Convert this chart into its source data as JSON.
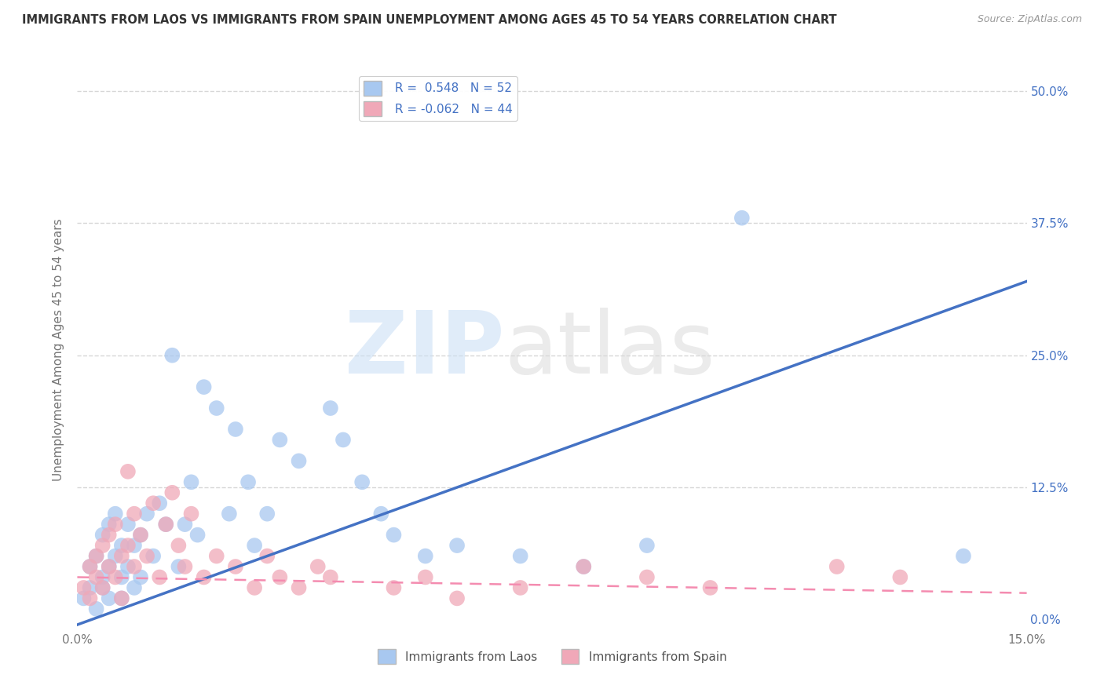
{
  "title": "IMMIGRANTS FROM LAOS VS IMMIGRANTS FROM SPAIN UNEMPLOYMENT AMONG AGES 45 TO 54 YEARS CORRELATION CHART",
  "source": "Source: ZipAtlas.com",
  "ylabel": "Unemployment Among Ages 45 to 54 years",
  "xlim": [
    0.0,
    0.15
  ],
  "ylim": [
    -0.01,
    0.52
  ],
  "ytick_positions": [
    0.0,
    0.125,
    0.25,
    0.375,
    0.5
  ],
  "ytick_labels_right": [
    "0.0%",
    "12.5%",
    "25.0%",
    "37.5%",
    "50.0%"
  ],
  "laos_color": "#a8c8f0",
  "spain_color": "#f0a8b8",
  "laos_line_color": "#4472c4",
  "spain_line_color": "#f48cb0",
  "laos_R": 0.548,
  "laos_N": 52,
  "spain_R": -0.062,
  "spain_N": 44,
  "background_color": "#ffffff",
  "grid_color": "#cccccc",
  "laos_x": [
    0.001,
    0.002,
    0.002,
    0.003,
    0.003,
    0.004,
    0.004,
    0.004,
    0.005,
    0.005,
    0.005,
    0.006,
    0.006,
    0.007,
    0.007,
    0.007,
    0.008,
    0.008,
    0.009,
    0.009,
    0.01,
    0.01,
    0.011,
    0.012,
    0.013,
    0.014,
    0.015,
    0.016,
    0.017,
    0.018,
    0.019,
    0.02,
    0.022,
    0.024,
    0.025,
    0.027,
    0.028,
    0.03,
    0.032,
    0.035,
    0.04,
    0.042,
    0.045,
    0.048,
    0.05,
    0.055,
    0.06,
    0.07,
    0.08,
    0.09,
    0.105,
    0.14
  ],
  "laos_y": [
    0.02,
    0.03,
    0.05,
    0.01,
    0.06,
    0.04,
    0.08,
    0.03,
    0.05,
    0.09,
    0.02,
    0.06,
    0.1,
    0.04,
    0.07,
    0.02,
    0.05,
    0.09,
    0.03,
    0.07,
    0.04,
    0.08,
    0.1,
    0.06,
    0.11,
    0.09,
    0.25,
    0.05,
    0.09,
    0.13,
    0.08,
    0.22,
    0.2,
    0.1,
    0.18,
    0.13,
    0.07,
    0.1,
    0.17,
    0.15,
    0.2,
    0.17,
    0.13,
    0.1,
    0.08,
    0.06,
    0.07,
    0.06,
    0.05,
    0.07,
    0.38,
    0.06
  ],
  "spain_x": [
    0.001,
    0.002,
    0.002,
    0.003,
    0.003,
    0.004,
    0.004,
    0.005,
    0.005,
    0.006,
    0.006,
    0.007,
    0.007,
    0.008,
    0.008,
    0.009,
    0.009,
    0.01,
    0.011,
    0.012,
    0.013,
    0.014,
    0.015,
    0.016,
    0.017,
    0.018,
    0.02,
    0.022,
    0.025,
    0.028,
    0.03,
    0.032,
    0.035,
    0.038,
    0.04,
    0.05,
    0.055,
    0.06,
    0.07,
    0.08,
    0.09,
    0.1,
    0.12,
    0.13
  ],
  "spain_y": [
    0.03,
    0.05,
    0.02,
    0.06,
    0.04,
    0.07,
    0.03,
    0.05,
    0.08,
    0.04,
    0.09,
    0.06,
    0.02,
    0.07,
    0.14,
    0.05,
    0.1,
    0.08,
    0.06,
    0.11,
    0.04,
    0.09,
    0.12,
    0.07,
    0.05,
    0.1,
    0.04,
    0.06,
    0.05,
    0.03,
    0.06,
    0.04,
    0.03,
    0.05,
    0.04,
    0.03,
    0.04,
    0.02,
    0.03,
    0.05,
    0.04,
    0.03,
    0.05,
    0.04
  ],
  "laos_line_x": [
    0.0,
    0.15
  ],
  "laos_line_y": [
    -0.005,
    0.32
  ],
  "spain_line_x": [
    0.0,
    0.15
  ],
  "spain_line_y": [
    0.04,
    0.025
  ]
}
